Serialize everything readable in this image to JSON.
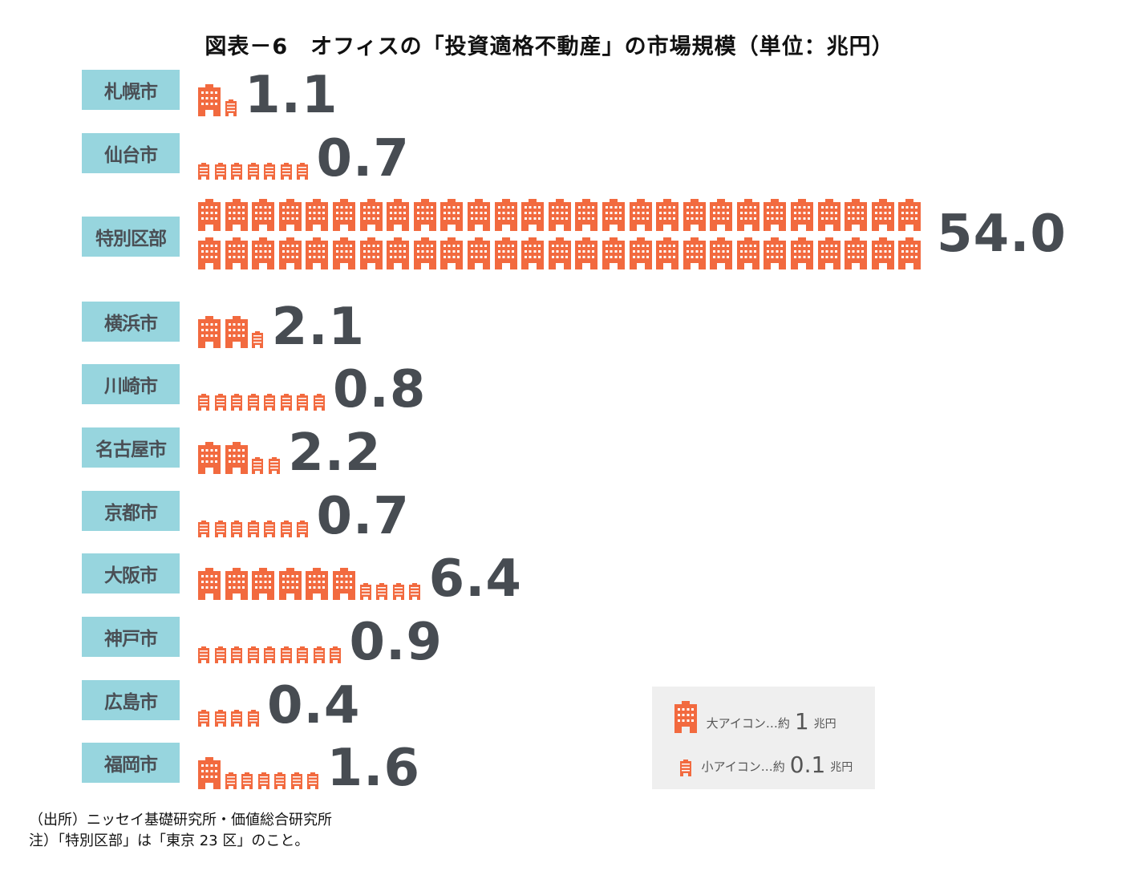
{
  "title": "図表－6　オフィスの「投資適格不動産」の市場規模（単位：兆円）",
  "colors": {
    "icon": "#f26a3f",
    "label_bg": "#97d5de",
    "label_text": "#4a4f55",
    "value_text": "#474c52",
    "legend_bg": "#efefef"
  },
  "rows": [
    {
      "label": "札幌市",
      "value": "1.1",
      "big": 1,
      "small": 1
    },
    {
      "label": "仙台市",
      "value": "0.7",
      "big": 0,
      "small": 7
    },
    {
      "label": "特別区部",
      "value": "54.0",
      "big": 54,
      "small": 0
    },
    {
      "label": "横浜市",
      "value": "2.1",
      "big": 2,
      "small": 1
    },
    {
      "label": "川崎市",
      "value": "0.8",
      "big": 0,
      "small": 8
    },
    {
      "label": "名古屋市",
      "value": "2.2",
      "big": 2,
      "small": 2
    },
    {
      "label": "京都市",
      "value": "0.7",
      "big": 0,
      "small": 7
    },
    {
      "label": "大阪市",
      "value": "6.4",
      "big": 6,
      "small": 4
    },
    {
      "label": "神戸市",
      "value": "0.9",
      "big": 0,
      "small": 9
    },
    {
      "label": "広島市",
      "value": "0.4",
      "big": 0,
      "small": 4
    },
    {
      "label": "福岡市",
      "value": "1.6",
      "big": 1,
      "small": 6
    }
  ],
  "legend": {
    "large": {
      "label": "大アイコン…約",
      "value": "1",
      "unit": "兆円"
    },
    "small": {
      "label": "小アイコン…約",
      "value": "0.1",
      "unit": "兆円"
    }
  },
  "notes": {
    "source": "（出所）ニッセイ基礎研究所・価値総合研究所",
    "note": "注）「特別区部」は「東京 23 区」のこと。"
  },
  "chart_data": {
    "type": "bar",
    "title": "図表－6　オフィスの「投資適格不動産」の市場規模（単位：兆円）",
    "categories": [
      "札幌市",
      "仙台市",
      "特別区部",
      "横浜市",
      "川崎市",
      "名古屋市",
      "京都市",
      "大阪市",
      "神戸市",
      "広島市",
      "福岡市"
    ],
    "values": [
      1.1,
      0.7,
      54.0,
      2.1,
      0.8,
      2.2,
      0.7,
      6.4,
      0.9,
      0.4,
      1.6
    ],
    "xlabel": "",
    "ylabel": "兆円",
    "orientation": "horizontal-pictogram",
    "legend": [
      "大アイコン…約1兆円",
      "小アイコン…約0.1兆円"
    ]
  }
}
